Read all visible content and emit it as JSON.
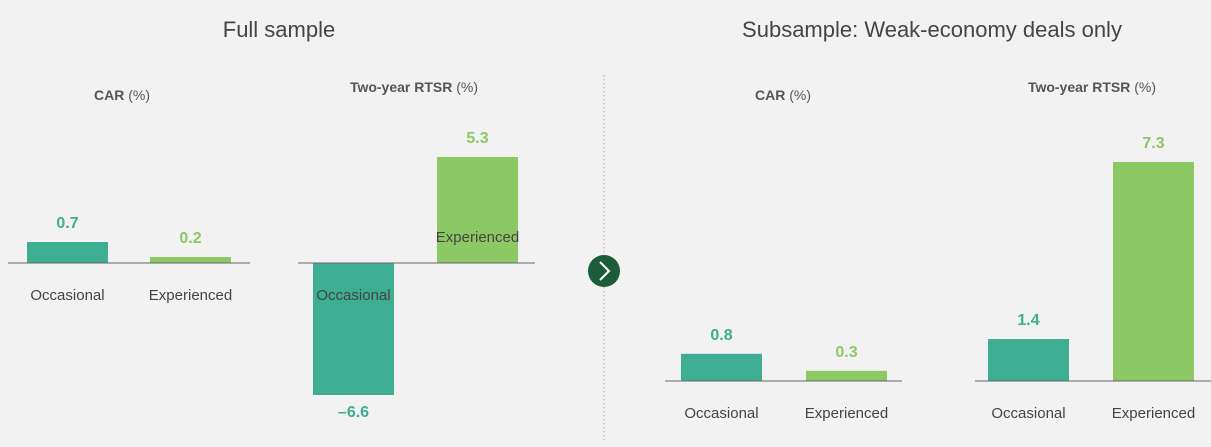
{
  "sections": [
    {
      "title": "Full sample"
    },
    {
      "title": "Subsample: Weak-economy deals only"
    }
  ],
  "chart_data": [
    {
      "type": "bar",
      "title": "CAR",
      "unit": "(%)",
      "categories": [
        "Occasional",
        "Experienced"
      ],
      "values": [
        0.7,
        0.2
      ],
      "colors": [
        "#3dae91",
        "#8cc863"
      ],
      "ylim": [
        0,
        1
      ]
    },
    {
      "type": "bar",
      "title": "Two-year RTSR",
      "unit": "(%)",
      "categories": [
        "Occasional",
        "Experienced"
      ],
      "values": [
        -6.6,
        5.3
      ],
      "value_labels": [
        "–6.6",
        "5.3"
      ],
      "colors": [
        "#3dae91",
        "#8cc863"
      ],
      "ylim": [
        -7,
        7
      ]
    },
    {
      "type": "bar",
      "title": "CAR",
      "unit": "(%)",
      "categories": [
        "Occasional",
        "Experienced"
      ],
      "values": [
        0.8,
        0.3
      ],
      "colors": [
        "#3dae91",
        "#8cc863"
      ],
      "ylim": [
        0,
        1
      ]
    },
    {
      "type": "bar",
      "title": "Two-year RTSR",
      "unit": "(%)",
      "categories": [
        "Occasional",
        "Experienced"
      ],
      "values": [
        1.4,
        7.3
      ],
      "colors": [
        "#3dae91",
        "#8cc863"
      ],
      "ylim": [
        0,
        8
      ]
    }
  ]
}
